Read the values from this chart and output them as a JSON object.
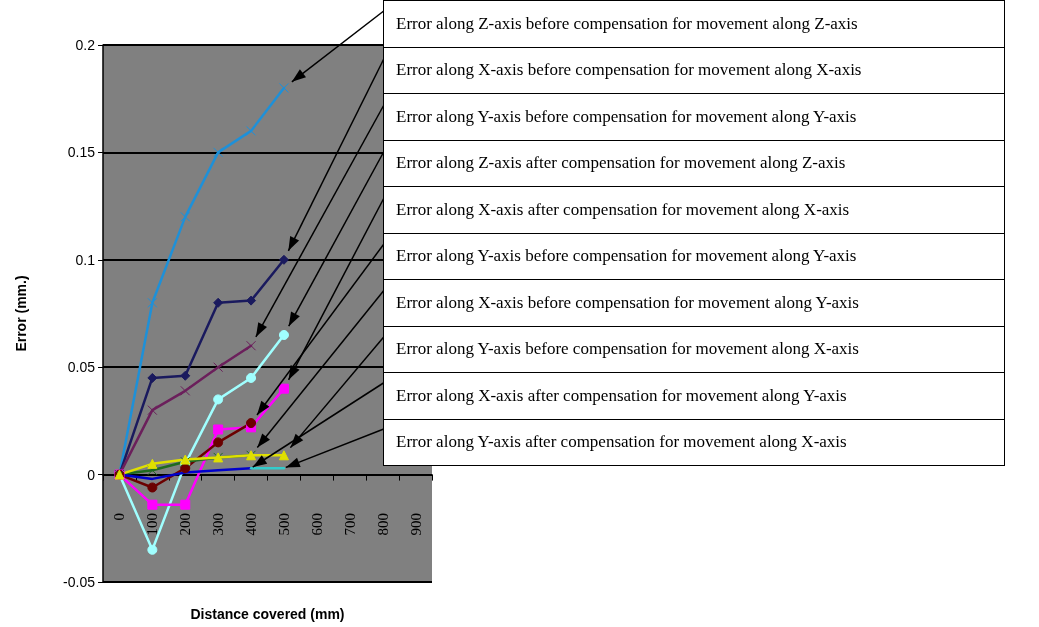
{
  "chart_data": {
    "type": "line",
    "xlabel": "Distance covered (mm)",
    "ylabel": "Error (mm.)",
    "categories": [
      "0",
      "100",
      "200",
      "300",
      "400",
      "500",
      "600",
      "700",
      "800",
      "900"
    ],
    "ylim": [
      -0.05,
      0.2
    ],
    "yticks": [
      -0.05,
      0,
      0.05,
      0.1,
      0.15,
      0.2
    ],
    "grid": "y",
    "series": [
      {
        "name": "Error along Z-axis before compensation for movement along Z-axis",
        "color": "#1e90d8",
        "marker": "cross",
        "values": [
          0,
          0.08,
          0.12,
          0.15,
          0.16,
          0.18,
          null,
          null,
          null,
          null
        ]
      },
      {
        "name": "Error along X-axis before compensation for movement along X-axis",
        "color": "#1a1a5e",
        "marker": "diamond",
        "values": [
          0,
          0.045,
          0.046,
          0.08,
          0.081,
          0.1,
          null,
          null,
          null,
          null
        ]
      },
      {
        "name": "Error along Y-axis before compensation for movement along Y-axis",
        "color": "#6b1f5b",
        "marker": "cross",
        "values": [
          0,
          0.03,
          0.039,
          0.05,
          0.06,
          null,
          null,
          null,
          null,
          null
        ]
      },
      {
        "name": "Error along Z-axis after compensation for movement along Z-axis",
        "color": "#a0ffff",
        "marker": "circle",
        "values": [
          0,
          -0.035,
          0.005,
          0.035,
          0.045,
          0.065,
          null,
          null,
          null,
          null
        ]
      },
      {
        "name": "Error along X-axis after compensation for movement along X-axis",
        "color": "#ff00ff",
        "marker": "square",
        "values": [
          0,
          -0.014,
          -0.014,
          0.021,
          0.022,
          0.04,
          null,
          null,
          null,
          null
        ]
      },
      {
        "name": "Error along Y-axis before compensation for movement along Y-axis",
        "color": "#6b0000",
        "marker": "circle",
        "values": [
          0,
          -0.006,
          0.003,
          0.015,
          0.024,
          null,
          null,
          null,
          null,
          null
        ]
      },
      {
        "name": "Error along X-axis before compensation for movement along Y-axis",
        "color": "#1f6b1f",
        "marker": "cross",
        "values": [
          0,
          0.002,
          0.006,
          0.008,
          0.009,
          null,
          null,
          null,
          null,
          null
        ]
      },
      {
        "name": "Error along Y-axis before compensation for movement along X-axis",
        "color": "#e0e000",
        "marker": "triangle",
        "values": [
          0,
          0.005,
          0.007,
          0.008,
          0.009,
          0.009,
          null,
          null,
          null,
          null
        ]
      },
      {
        "name": "Error along X-axis after compensation for movement along Y-axis",
        "color": "#0000cc",
        "marker": "none",
        "values": [
          0,
          -0.002,
          0.001,
          0.002,
          0.003,
          null,
          null,
          null,
          null,
          null
        ]
      },
      {
        "name": "Error along Y-axis after compensation for movement along X-axis",
        "color": "#33cccc",
        "marker": "none",
        "values": [
          null,
          null,
          null,
          null,
          0.003,
          0.003,
          null,
          null,
          null,
          null
        ]
      }
    ]
  }
}
